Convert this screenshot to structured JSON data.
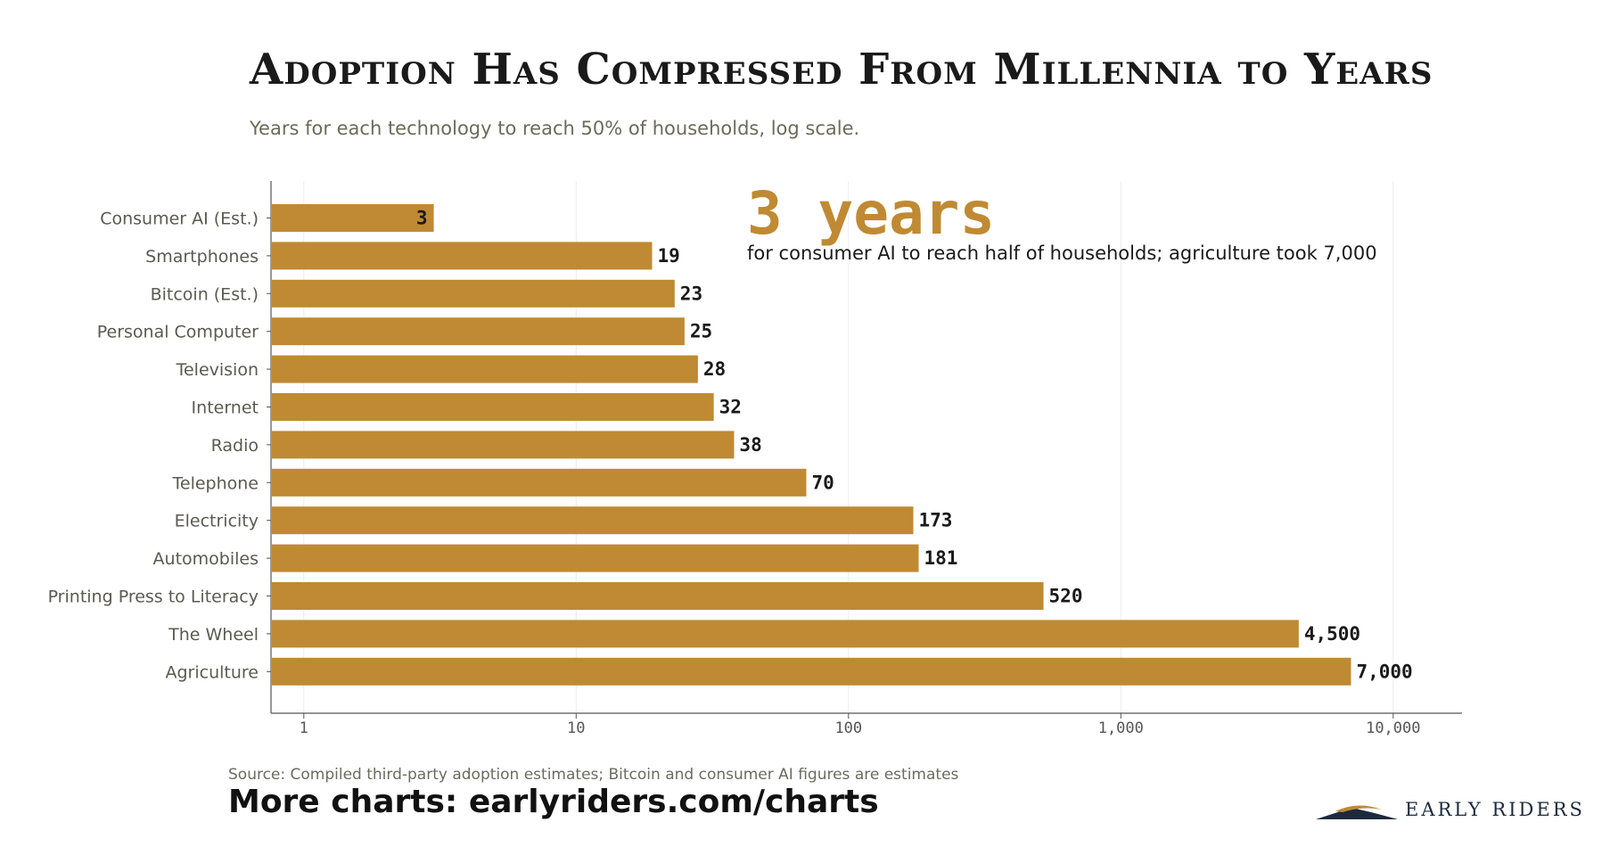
{
  "title": "Adoption Has Compressed From Millennia to Years",
  "subtitle": "Years for each technology to reach 50% of households, log scale.",
  "chart_data": {
    "type": "bar",
    "orientation": "horizontal",
    "x_scale": "log",
    "xlim": [
      0.75,
      14000
    ],
    "x_ticks": [
      1,
      10,
      100,
      1000,
      10000
    ],
    "x_tick_labels": [
      "1",
      "10",
      "100",
      "1,000",
      "10,000"
    ],
    "grid": "vertical",
    "bar_color": "#bf8a33",
    "categories": [
      "Consumer AI (Est.)",
      "Smartphones",
      "Bitcoin (Est.)",
      "Personal Computer",
      "Television",
      "Internet",
      "Radio",
      "Telephone",
      "Electricity",
      "Automobiles",
      "Printing Press to Literacy",
      "The Wheel",
      "Agriculture"
    ],
    "values": [
      3,
      19,
      23,
      25,
      28,
      32,
      38,
      70,
      173,
      181,
      520,
      4500,
      7000
    ],
    "value_labels": [
      "3",
      "19",
      "23",
      "25",
      "28",
      "32",
      "38",
      "70",
      "173",
      "181",
      "520",
      "4,500",
      "7,000"
    ],
    "annotation": {
      "headline": "3 years",
      "text": "for consumer AI to reach half of households; agriculture took 7,000",
      "color": "#bf8a33"
    }
  },
  "footer": {
    "source": "Source: Compiled third-party adoption estimates; Bitcoin and consumer AI figures are estimates",
    "more_charts": "More charts: earlyriders.com/charts",
    "brand": "EARLY RIDERS"
  }
}
